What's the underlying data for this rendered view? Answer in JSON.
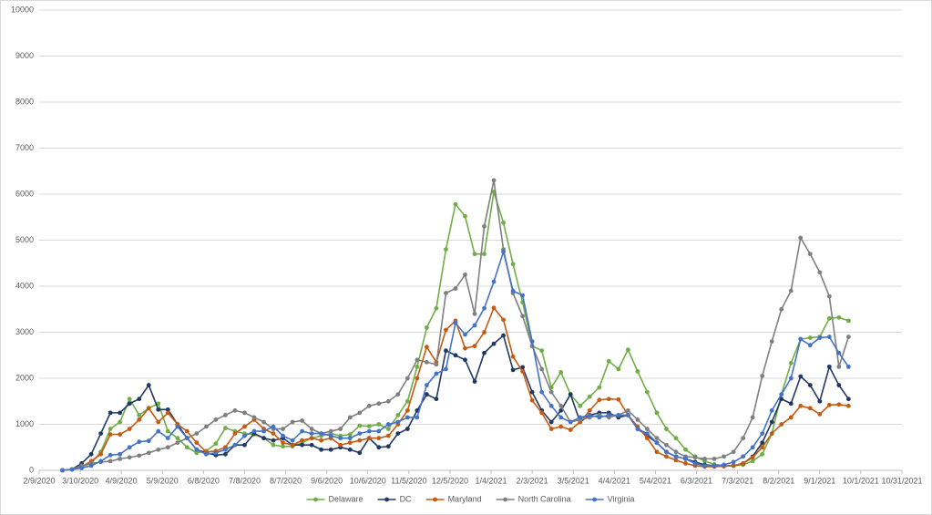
{
  "chart_data": {
    "type": "line",
    "x": [
      "2/26/2020",
      "3/4/2020",
      "3/11/2020",
      "3/18/2020",
      "3/25/2020",
      "4/1/2020",
      "4/8/2020",
      "4/15/2020",
      "4/22/2020",
      "4/29/2020",
      "5/6/2020",
      "5/13/2020",
      "5/20/2020",
      "5/27/2020",
      "6/3/2020",
      "6/10/2020",
      "6/17/2020",
      "6/24/2020",
      "7/1/2020",
      "7/8/2020",
      "7/15/2020",
      "7/22/2020",
      "7/29/2020",
      "8/5/2020",
      "8/12/2020",
      "8/19/2020",
      "8/26/2020",
      "9/2/2020",
      "9/9/2020",
      "9/16/2020",
      "9/23/2020",
      "9/30/2020",
      "10/7/2020",
      "10/14/2020",
      "10/21/2020",
      "10/28/2020",
      "11/4/2020",
      "11/11/2020",
      "11/18/2020",
      "11/25/2020",
      "12/2/2020",
      "12/9/2020",
      "12/16/2020",
      "12/23/2020",
      "12/30/2020",
      "1/6/2021",
      "1/13/2021",
      "1/20/2021",
      "1/27/2021",
      "2/3/2021",
      "2/10/2021",
      "2/17/2021",
      "2/24/2021",
      "3/3/2021",
      "3/10/2021",
      "3/17/2021",
      "3/24/2021",
      "3/31/2021",
      "4/7/2021",
      "4/14/2021",
      "4/21/2021",
      "4/28/2021",
      "5/5/2021",
      "5/12/2021",
      "5/19/2021",
      "5/26/2021",
      "6/2/2021",
      "6/9/2021",
      "6/16/2021",
      "6/23/2021",
      "6/30/2021",
      "7/7/2021",
      "7/14/2021",
      "7/21/2021",
      "7/28/2021",
      "8/4/2021",
      "8/11/2021",
      "8/18/2021",
      "8/25/2021",
      "9/1/2021",
      "9/8/2021",
      "9/15/2021",
      "9/22/2021"
    ],
    "series": [
      {
        "name": "Delaware",
        "color": "#70ad47",
        "values": [
          0,
          20,
          80,
          150,
          400,
          900,
          1050,
          1550,
          1200,
          1350,
          1450,
          850,
          700,
          500,
          380,
          420,
          580,
          920,
          850,
          800,
          780,
          700,
          550,
          520,
          520,
          600,
          700,
          750,
          800,
          750,
          780,
          970,
          960,
          1000,
          900,
          1200,
          1500,
          2250,
          3100,
          3520,
          4800,
          5780,
          5520,
          4700,
          4700,
          6050,
          5380,
          4480,
          3650,
          2700,
          2600,
          1800,
          2130,
          1650,
          1400,
          1600,
          1800,
          2370,
          2200,
          2620,
          2150,
          1700,
          1250,
          900,
          700,
          450,
          300,
          200,
          130,
          100,
          100,
          120,
          200,
          350,
          800,
          1650,
          2330,
          2850,
          2880,
          2900,
          3300,
          3320,
          3250
        ]
      },
      {
        "name": "DC",
        "color": "#203864",
        "values": [
          0,
          20,
          150,
          350,
          800,
          1250,
          1250,
          1450,
          1550,
          1850,
          1320,
          1320,
          1000,
          700,
          450,
          380,
          330,
          350,
          550,
          550,
          800,
          700,
          650,
          700,
          550,
          550,
          550,
          450,
          450,
          500,
          450,
          380,
          700,
          500,
          520,
          800,
          900,
          1300,
          1650,
          1550,
          2600,
          2500,
          2400,
          1930,
          2550,
          2750,
          2930,
          2180,
          2240,
          1700,
          1300,
          1050,
          1300,
          1650,
          1050,
          1200,
          1250,
          1250,
          1150,
          1200,
          900,
          750,
          600,
          400,
          300,
          250,
          180,
          120,
          100,
          90,
          100,
          150,
          300,
          600,
          1050,
          1550,
          1450,
          2040,
          1850,
          1500,
          2250,
          1850,
          1550
        ]
      },
      {
        "name": "Maryland",
        "color": "#c55a11",
        "values": [
          0,
          20,
          80,
          200,
          350,
          780,
          780,
          900,
          1100,
          1350,
          1050,
          1250,
          1000,
          850,
          600,
          400,
          420,
          500,
          800,
          950,
          1100,
          900,
          800,
          600,
          550,
          650,
          700,
          650,
          700,
          550,
          600,
          650,
          700,
          700,
          750,
          1000,
          1300,
          2000,
          2680,
          2350,
          3050,
          3250,
          2650,
          2700,
          3000,
          3530,
          3270,
          2470,
          2150,
          1520,
          1250,
          900,
          950,
          880,
          1050,
          1300,
          1530,
          1550,
          1540,
          1200,
          950,
          700,
          400,
          300,
          220,
          150,
          100,
          80,
          80,
          90,
          100,
          150,
          280,
          500,
          800,
          1000,
          1150,
          1400,
          1350,
          1220,
          1420,
          1430,
          1400
        ]
      },
      {
        "name": "North Carolina",
        "color": "#7f7f7f",
        "values": [
          0,
          20,
          100,
          150,
          180,
          200,
          250,
          280,
          320,
          380,
          450,
          500,
          600,
          700,
          800,
          950,
          1100,
          1200,
          1300,
          1250,
          1150,
          1050,
          900,
          900,
          1050,
          1080,
          900,
          800,
          850,
          900,
          1150,
          1250,
          1400,
          1450,
          1500,
          1650,
          2000,
          2400,
          2350,
          2300,
          3850,
          3950,
          4250,
          3400,
          5300,
          6300,
          4800,
          3850,
          3350,
          2700,
          2200,
          1700,
          1400,
          1050,
          1100,
          1150,
          1200,
          1150,
          1200,
          1300,
          1100,
          900,
          700,
          550,
          400,
          300,
          280,
          250,
          250,
          300,
          400,
          700,
          1150,
          2050,
          2800,
          3500,
          3900,
          5050,
          4700,
          4300,
          3780,
          2250,
          2900
        ]
      },
      {
        "name": "Virginia",
        "color": "#4472c4",
        "values": [
          0,
          20,
          50,
          100,
          200,
          330,
          350,
          500,
          620,
          640,
          850,
          700,
          950,
          700,
          450,
          350,
          380,
          450,
          550,
          750,
          850,
          850,
          950,
          750,
          650,
          850,
          800,
          800,
          750,
          700,
          700,
          800,
          850,
          850,
          1000,
          1050,
          1150,
          1150,
          1850,
          2100,
          2200,
          3200,
          2950,
          3150,
          3520,
          4100,
          4750,
          3900,
          3800,
          2800,
          1700,
          1400,
          1150,
          1050,
          1150,
          1200,
          1150,
          1200,
          1200,
          1200,
          900,
          800,
          600,
          400,
          300,
          250,
          150,
          100,
          100,
          120,
          180,
          300,
          500,
          800,
          1300,
          1650,
          2000,
          2850,
          2720,
          2880,
          2900,
          2550,
          2250
        ]
      }
    ],
    "xlim": [
      "2/9/2020",
      "10/31/2021"
    ],
    "xticks": [
      "2/9/2020",
      "3/10/2020",
      "4/9/2020",
      "5/9/2020",
      "6/8/2020",
      "7/8/2020",
      "8/7/2020",
      "9/6/2020",
      "10/6/2020",
      "11/5/2020",
      "12/5/2020",
      "1/4/2021",
      "2/3/2021",
      "3/5/2021",
      "4/4/2021",
      "5/4/2021",
      "6/3/2021",
      "7/3/2021",
      "8/2/2021",
      "9/1/2021",
      "10/1/2021",
      "10/31/2021"
    ],
    "ylim": [
      0,
      10000
    ],
    "yticks": [
      0,
      1000,
      2000,
      3000,
      4000,
      5000,
      6000,
      7000,
      8000,
      9000,
      10000
    ],
    "grid": true,
    "legend": "bottom"
  }
}
